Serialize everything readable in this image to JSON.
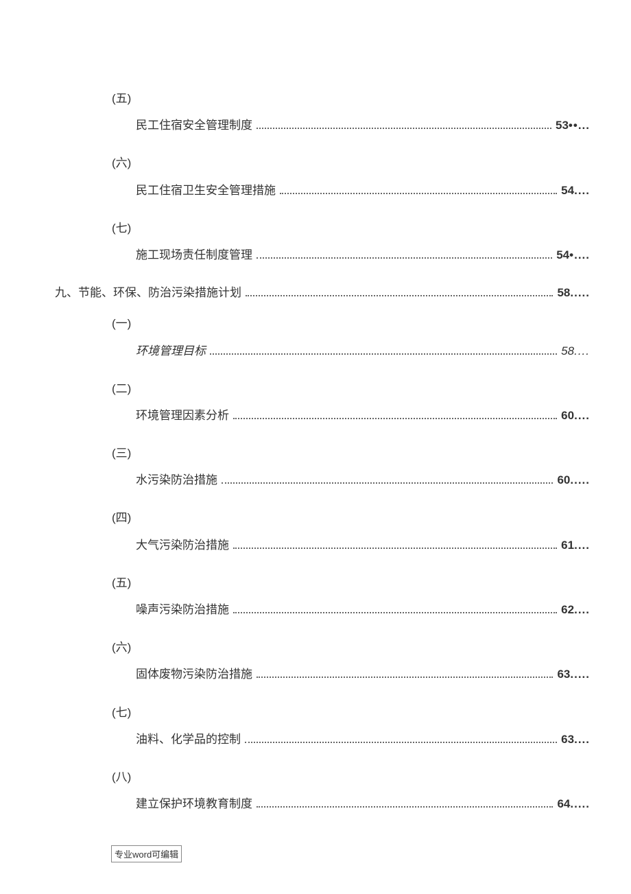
{
  "colors": {
    "text": "#333333",
    "background": "#ffffff",
    "dots": "#666666",
    "border": "#888888"
  },
  "typography": {
    "body_fontsize": 17,
    "footer_fontsize": 13,
    "font_family": "Microsoft YaHei"
  },
  "entries": [
    {
      "marker": "(五)",
      "title": "民工住宿安全管理制度",
      "page": "53",
      "trail": "••...",
      "italic": false
    },
    {
      "marker": "(六)",
      "title": "民工住宿卫生安全管理措施",
      "page": "54",
      "trail": "....",
      "italic": false
    },
    {
      "marker": "(七)",
      "title": "施工现场责任制度管理",
      "page": "54",
      "trail": "•....",
      "italic": false
    }
  ],
  "section_heading": {
    "title": "九、节能、环保、防治污染措施计划",
    "page": "58",
    "trail": ".....",
    "italic": false
  },
  "entries2": [
    {
      "marker": "(一)",
      "title": "环境管理目标",
      "page": "58",
      "trail": "....",
      "italic": true
    },
    {
      "marker": "(二)",
      "title": "环境管理因素分析",
      "page": "60",
      "trail": "....",
      "italic": false
    },
    {
      "marker": "(三)",
      "title": "水污染防治措施",
      "page": "60",
      "trail": ".....",
      "italic": false
    },
    {
      "marker": "(四)",
      "title": "大气污染防治措施",
      "page": "61",
      "trail": "....",
      "italic": false
    },
    {
      "marker": "(五)",
      "title": "噪声污染防治措施",
      "page": "62",
      "trail": "....",
      "italic": false
    },
    {
      "marker": "(六)",
      "title": "固体废物污染防治措施",
      "page": "63",
      "trail": ".....",
      "italic": false
    },
    {
      "marker": "(七)",
      "title": "油料、化学品的控制",
      "page": "63",
      "trail": "....",
      "italic": false
    },
    {
      "marker": "(八)",
      "title": "建立保护环境教育制度",
      "page": "64",
      "trail": ".....",
      "italic": false
    }
  ],
  "footer": "专业word可编辑"
}
